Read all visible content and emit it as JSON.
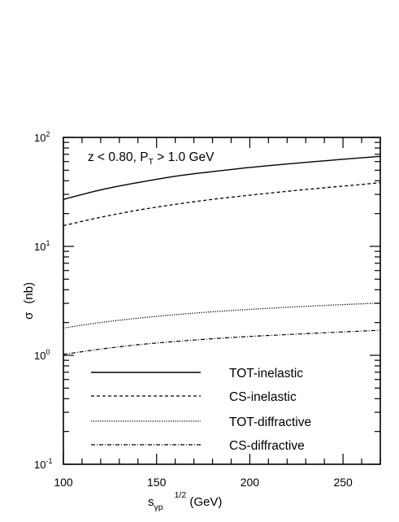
{
  "chart_data": {
    "type": "line",
    "title": "",
    "annotation": {
      "main": "z < 0.80, P",
      "sub": "T",
      "rest": " > 1.0 GeV"
    },
    "xlabel": {
      "main": "s",
      "sub": "γp",
      "sup": "1/2",
      "unit": " (GeV)"
    },
    "ylabel": {
      "symbol": "σ",
      "unit": "(nb)"
    },
    "xlim": [
      100,
      270
    ],
    "ylim": [
      0.1,
      100
    ],
    "yscale": "log",
    "x_ticks": [
      {
        "value": 100,
        "label": "100"
      },
      {
        "value": 150,
        "label": "150"
      },
      {
        "value": 200,
        "label": "200"
      },
      {
        "value": 250,
        "label": "250"
      }
    ],
    "y_ticks": [
      {
        "value": 0.1,
        "base": "10",
        "exp": "-1"
      },
      {
        "value": 1,
        "base": "10",
        "exp": "0"
      },
      {
        "value": 10,
        "base": "10",
        "exp": "1"
      },
      {
        "value": 100,
        "base": "10",
        "exp": "2"
      }
    ],
    "grid": false,
    "legend_position": "bottom-right",
    "series": [
      {
        "name": "TOT-inelastic",
        "style": "solid",
        "x": [
          100,
          120,
          140,
          160,
          180,
          200,
          220,
          240,
          260,
          270
        ],
        "y": [
          27,
          33,
          38.5,
          44,
          48.5,
          53,
          57,
          61,
          65,
          67
        ]
      },
      {
        "name": "CS-inelastic",
        "style": "dashed",
        "x": [
          100,
          120,
          140,
          160,
          180,
          200,
          220,
          240,
          260,
          270
        ],
        "y": [
          15.5,
          18.5,
          21.5,
          24.3,
          27,
          29.5,
          32,
          34.5,
          37,
          38.5
        ]
      },
      {
        "name": "TOT-diffractive",
        "style": "dotted",
        "x": [
          100,
          120,
          140,
          160,
          180,
          200,
          220,
          240,
          260,
          270
        ],
        "y": [
          1.78,
          2.0,
          2.19,
          2.36,
          2.51,
          2.64,
          2.76,
          2.87,
          2.97,
          3.02
        ]
      },
      {
        "name": "CS-diffractive",
        "style": "dashdot",
        "x": [
          100,
          120,
          140,
          160,
          180,
          200,
          220,
          240,
          260,
          270
        ],
        "y": [
          1.02,
          1.14,
          1.25,
          1.34,
          1.42,
          1.49,
          1.55,
          1.61,
          1.67,
          1.7
        ]
      }
    ]
  }
}
